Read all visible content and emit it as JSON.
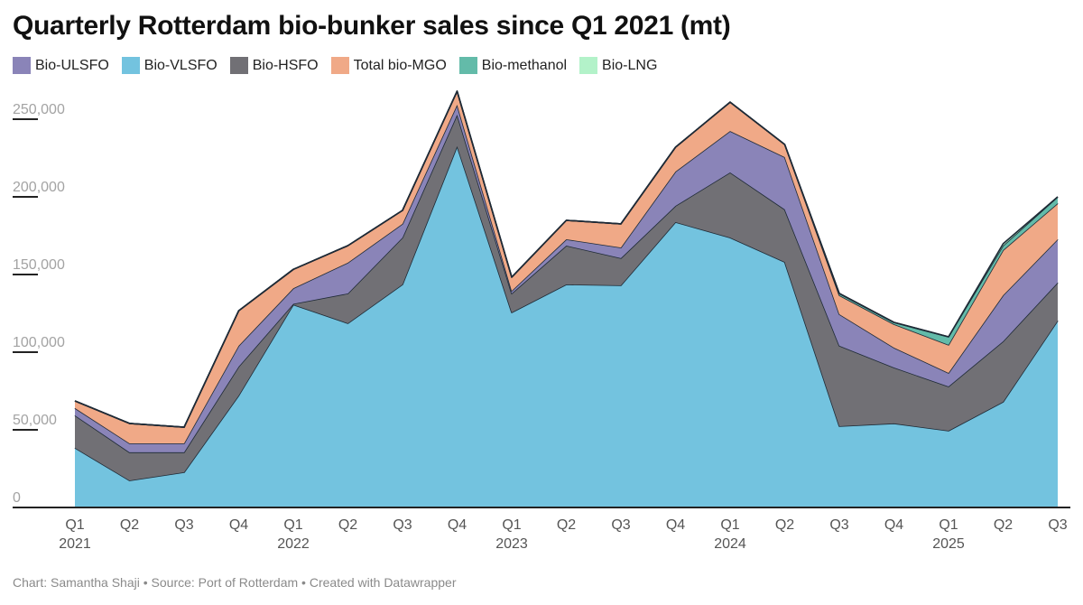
{
  "chart_data": {
    "type": "area",
    "stacked": true,
    "title": "Quarterly Rotterdam bio-bunker sales since Q1 2021 (mt)",
    "xlabel": "",
    "ylabel": "",
    "ylim": [
      0,
      270000
    ],
    "yticks": [
      0,
      50000,
      100000,
      150000,
      200000,
      250000
    ],
    "ytick_labels": [
      "0",
      "50,000",
      "100,000",
      "150,000",
      "200,000",
      "250,000"
    ],
    "grid": false,
    "legend_position": "top-left",
    "categories": [
      "Q1 2021",
      "Q2 2021",
      "Q3 2021",
      "Q4 2021",
      "Q1 2022",
      "Q2 2022",
      "Q3 2022",
      "Q4 2022",
      "Q1 2023",
      "Q2 2023",
      "Q3 2023",
      "Q4 2023",
      "Q1 2024",
      "Q2 2024",
      "Q3 2024",
      "Q4 2024",
      "Q1 2025",
      "Q2 2025",
      "Q3 2025"
    ],
    "x_tick_labels": [
      {
        "q": "Q1",
        "year": "2021"
      },
      {
        "q": "Q2",
        "year": ""
      },
      {
        "q": "Q3",
        "year": ""
      },
      {
        "q": "Q4",
        "year": ""
      },
      {
        "q": "Q1",
        "year": "2022"
      },
      {
        "q": "Q2",
        "year": ""
      },
      {
        "q": "Q3",
        "year": ""
      },
      {
        "q": "Q4",
        "year": ""
      },
      {
        "q": "Q1",
        "year": "2023"
      },
      {
        "q": "Q2",
        "year": ""
      },
      {
        "q": "Q3",
        "year": ""
      },
      {
        "q": "Q4",
        "year": ""
      },
      {
        "q": "Q1",
        "year": "2024"
      },
      {
        "q": "Q2",
        "year": ""
      },
      {
        "q": "Q3",
        "year": ""
      },
      {
        "q": "Q4",
        "year": ""
      },
      {
        "q": "Q1",
        "year": "2025"
      },
      {
        "q": "Q2",
        "year": ""
      },
      {
        "q": "Q3",
        "year": ""
      }
    ],
    "stack_order": [
      "Bio-VLSFO",
      "Bio-HSFO",
      "Bio-ULSFO",
      "Total bio-MGO",
      "Bio-methanol",
      "Bio-LNG"
    ],
    "series": [
      {
        "name": "Bio-ULSFO",
        "color": "#8a84b8",
        "values": [
          4700,
          5800,
          5800,
          13400,
          10000,
          19800,
          8800,
          6400,
          1700,
          4100,
          6900,
          22100,
          26700,
          33700,
          20300,
          12800,
          8700,
          29600,
          27900
        ]
      },
      {
        "name": "Bio-VLSFO",
        "color": "#73c3df",
        "values": [
          38400,
          17400,
          22700,
          72100,
          130600,
          118600,
          143600,
          232600,
          125600,
          143600,
          143000,
          183700,
          173800,
          158100,
          52300,
          54100,
          49400,
          68000,
          120300
        ]
      },
      {
        "name": "Bio-HSFO",
        "color": "#717075",
        "values": [
          20900,
          18100,
          12800,
          18600,
          500,
          19200,
          30200,
          20300,
          12200,
          25000,
          17500,
          10500,
          41900,
          33800,
          51800,
          36000,
          28500,
          39000,
          24500
        ]
      },
      {
        "name": "Total bio-MGO",
        "color": "#f0a987",
        "values": [
          4600,
          12800,
          10400,
          22600,
          12200,
          11000,
          8700,
          8700,
          8800,
          12200,
          15200,
          15700,
          18600,
          8100,
          12200,
          15100,
          18100,
          29100,
          23200
        ]
      },
      {
        "name": "Bio-methanol",
        "color": "#63bba9",
        "values": [
          0,
          0,
          0,
          0,
          0,
          0,
          0,
          0,
          0,
          0,
          0,
          0,
          0,
          0,
          1200,
          1200,
          5200,
          2900,
          4100
        ]
      },
      {
        "name": "Bio-LNG",
        "color": "#b3f2c9",
        "values": [
          0,
          0,
          0,
          0,
          0,
          0,
          0,
          0,
          0,
          0,
          0,
          0,
          0,
          0,
          0,
          0,
          0,
          1200,
          0
        ]
      }
    ]
  },
  "footer": {
    "text": "Chart: Samantha Shaji • Source: Port of Rotterdam • Created with Datawrapper"
  }
}
